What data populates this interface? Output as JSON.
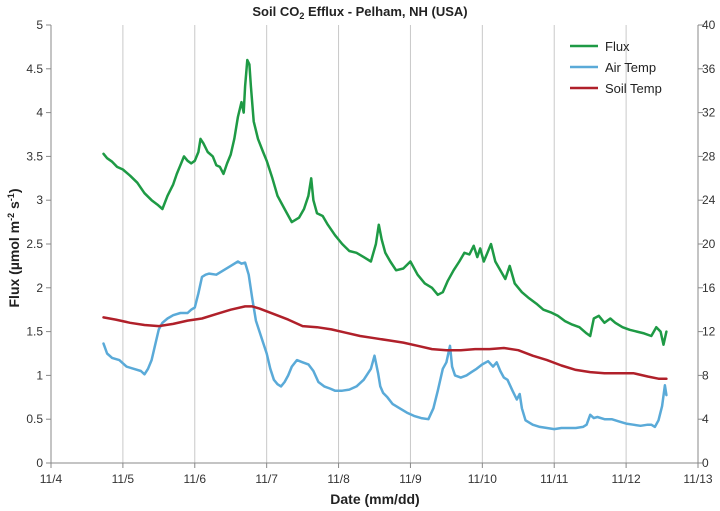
{
  "chart_data": {
    "type": "line",
    "title_main": "Soil CO",
    "title_sub": "2",
    "title_rest": " Efflux - Pelham, NH (USA)",
    "xlabel": "Date  (mm/dd)",
    "ylabel_main": "Flux (µmol m",
    "ylabel_sup1": "-2",
    "ylabel_mid": " s",
    "ylabel_sup2": "-1",
    "ylabel_end": ")",
    "x_ticks": [
      "11/4",
      "11/5",
      "11/6",
      "11/7",
      "11/8",
      "11/9",
      "11/10",
      "11/11",
      "11/12",
      "11/13"
    ],
    "xlim": [
      4,
      13
    ],
    "y_left_ticks": [
      "0",
      "0.5",
      "1",
      "1.5",
      "2",
      "2.5",
      "3",
      "3.5",
      "4",
      "4.5",
      "5"
    ],
    "ylim_left": [
      0,
      5
    ],
    "y_right_ticks": [
      "0",
      "4",
      "8",
      "12",
      "16",
      "20",
      "24",
      "28",
      "32",
      "36",
      "40"
    ],
    "ylim_right": [
      0,
      40
    ],
    "grid": "vertical",
    "legend_position": "top-right",
    "series": [
      {
        "name": "Flux",
        "axis": "left",
        "color": "#1e9a45",
        "x": [
          4.73,
          4.78,
          4.85,
          4.92,
          5.0,
          5.1,
          5.2,
          5.3,
          5.4,
          5.48,
          5.55,
          5.62,
          5.7,
          5.75,
          5.8,
          5.85,
          5.9,
          5.95,
          6.0,
          6.05,
          6.08,
          6.12,
          6.18,
          6.25,
          6.3,
          6.35,
          6.4,
          6.45,
          6.5,
          6.55,
          6.6,
          6.65,
          6.68,
          6.7,
          6.73,
          6.76,
          6.78,
          6.82,
          6.88,
          6.95,
          7.0,
          7.08,
          7.15,
          7.25,
          7.35,
          7.45,
          7.52,
          7.58,
          7.62,
          7.65,
          7.7,
          7.78,
          7.85,
          7.95,
          8.05,
          8.15,
          8.25,
          8.35,
          8.45,
          8.52,
          8.56,
          8.6,
          8.65,
          8.72,
          8.8,
          8.9,
          9.0,
          9.1,
          9.2,
          9.3,
          9.38,
          9.45,
          9.52,
          9.6,
          9.68,
          9.75,
          9.82,
          9.88,
          9.93,
          9.97,
          10.02,
          10.07,
          10.12,
          10.18,
          10.25,
          10.32,
          10.38,
          10.45,
          10.55,
          10.65,
          10.75,
          10.85,
          10.95,
          11.05,
          11.15,
          11.25,
          11.35,
          11.45,
          11.5,
          11.55,
          11.62,
          11.7,
          11.78,
          11.85,
          11.95,
          12.05,
          12.15,
          12.25,
          12.35,
          12.42,
          12.48,
          12.52,
          12.56
        ],
        "values": [
          3.53,
          3.48,
          3.44,
          3.38,
          3.35,
          3.28,
          3.2,
          3.08,
          3.0,
          2.95,
          2.9,
          3.05,
          3.18,
          3.3,
          3.4,
          3.5,
          3.45,
          3.42,
          3.45,
          3.55,
          3.7,
          3.65,
          3.55,
          3.5,
          3.4,
          3.38,
          3.3,
          3.42,
          3.52,
          3.7,
          3.95,
          4.12,
          4.0,
          4.3,
          4.6,
          4.55,
          4.3,
          3.9,
          3.7,
          3.55,
          3.45,
          3.25,
          3.05,
          2.9,
          2.75,
          2.8,
          2.9,
          3.05,
          3.25,
          3.0,
          2.85,
          2.82,
          2.72,
          2.6,
          2.5,
          2.42,
          2.4,
          2.35,
          2.3,
          2.5,
          2.72,
          2.55,
          2.4,
          2.3,
          2.2,
          2.22,
          2.3,
          2.15,
          2.05,
          2.0,
          1.92,
          1.95,
          2.08,
          2.2,
          2.3,
          2.4,
          2.38,
          2.48,
          2.35,
          2.45,
          2.3,
          2.4,
          2.5,
          2.3,
          2.2,
          2.1,
          2.25,
          2.05,
          1.95,
          1.88,
          1.82,
          1.75,
          1.72,
          1.68,
          1.62,
          1.58,
          1.55,
          1.48,
          1.45,
          1.65,
          1.68,
          1.6,
          1.65,
          1.6,
          1.55,
          1.52,
          1.5,
          1.48,
          1.45,
          1.55,
          1.5,
          1.35,
          1.5
        ]
      },
      {
        "name": "Air Temp",
        "axis": "right",
        "color": "#5aaad8",
        "x": [
          4.73,
          4.78,
          4.85,
          4.95,
          5.05,
          5.15,
          5.25,
          5.3,
          5.35,
          5.4,
          5.45,
          5.5,
          5.55,
          5.62,
          5.7,
          5.8,
          5.9,
          5.95,
          6.0,
          6.05,
          6.1,
          6.15,
          6.2,
          6.3,
          6.4,
          6.5,
          6.6,
          6.65,
          6.7,
          6.75,
          6.8,
          6.85,
          6.9,
          6.95,
          7.0,
          7.05,
          7.1,
          7.15,
          7.2,
          7.25,
          7.3,
          7.35,
          7.42,
          7.5,
          7.58,
          7.65,
          7.72,
          7.8,
          7.88,
          7.95,
          8.05,
          8.15,
          8.25,
          8.35,
          8.45,
          8.5,
          8.55,
          8.58,
          8.62,
          8.68,
          8.75,
          8.85,
          8.95,
          9.05,
          9.15,
          9.25,
          9.32,
          9.38,
          9.45,
          9.5,
          9.55,
          9.58,
          9.62,
          9.7,
          9.78,
          9.85,
          9.92,
          10.0,
          10.08,
          10.15,
          10.2,
          10.25,
          10.3,
          10.35,
          10.42,
          10.48,
          10.52,
          10.55,
          10.6,
          10.7,
          10.8,
          10.9,
          11.0,
          11.1,
          11.2,
          11.3,
          11.4,
          11.45,
          11.5,
          11.55,
          11.6,
          11.7,
          11.8,
          11.9,
          12.0,
          12.1,
          12.2,
          12.3,
          12.35,
          12.4,
          12.45,
          12.5,
          12.54,
          12.56
        ],
        "values": [
          10.9,
          10.0,
          9.6,
          9.4,
          8.8,
          8.6,
          8.4,
          8.1,
          8.6,
          9.4,
          10.8,
          12.2,
          12.8,
          13.2,
          13.5,
          13.7,
          13.7,
          14.0,
          14.2,
          15.5,
          17.0,
          17.2,
          17.3,
          17.2,
          17.6,
          18.0,
          18.4,
          18.2,
          18.3,
          17.2,
          15.0,
          13.0,
          12.0,
          11.0,
          10.0,
          8.6,
          7.6,
          7.2,
          7.0,
          7.4,
          8.0,
          8.8,
          9.4,
          9.2,
          9.0,
          8.4,
          7.4,
          7.0,
          6.8,
          6.6,
          6.6,
          6.7,
          7.0,
          7.6,
          8.6,
          9.8,
          8.2,
          7.0,
          6.4,
          6.0,
          5.4,
          5.0,
          4.6,
          4.3,
          4.1,
          4.0,
          5.0,
          6.6,
          8.6,
          9.2,
          10.7,
          8.8,
          8.0,
          7.8,
          8.0,
          8.3,
          8.6,
          9.0,
          9.3,
          8.8,
          9.2,
          8.4,
          7.8,
          7.6,
          6.6,
          5.8,
          6.3,
          5.0,
          3.9,
          3.5,
          3.3,
          3.2,
          3.1,
          3.2,
          3.2,
          3.2,
          3.3,
          3.5,
          4.4,
          4.1,
          4.2,
          4.0,
          4.0,
          3.8,
          3.6,
          3.5,
          3.4,
          3.5,
          3.5,
          3.3,
          3.9,
          5.2,
          7.1,
          6.2
        ]
      },
      {
        "name": "Soil Temp",
        "axis": "right",
        "color": "#b0202a",
        "x": [
          4.73,
          4.9,
          5.1,
          5.3,
          5.5,
          5.7,
          5.9,
          6.1,
          6.3,
          6.5,
          6.7,
          6.8,
          6.9,
          7.1,
          7.3,
          7.5,
          7.7,
          7.9,
          8.1,
          8.3,
          8.5,
          8.7,
          8.9,
          9.1,
          9.3,
          9.5,
          9.7,
          9.9,
          10.1,
          10.3,
          10.5,
          10.7,
          10.9,
          11.1,
          11.3,
          11.5,
          11.7,
          11.9,
          12.1,
          12.3,
          12.45,
          12.56
        ],
        "values": [
          13.3,
          13.1,
          12.8,
          12.6,
          12.5,
          12.7,
          13.0,
          13.2,
          13.6,
          14.0,
          14.3,
          14.3,
          14.1,
          13.6,
          13.1,
          12.5,
          12.4,
          12.2,
          11.9,
          11.6,
          11.4,
          11.2,
          11.0,
          10.7,
          10.4,
          10.3,
          10.3,
          10.4,
          10.4,
          10.5,
          10.3,
          9.8,
          9.4,
          8.9,
          8.5,
          8.3,
          8.2,
          8.2,
          8.2,
          7.9,
          7.7,
          7.7
        ]
      }
    ]
  }
}
